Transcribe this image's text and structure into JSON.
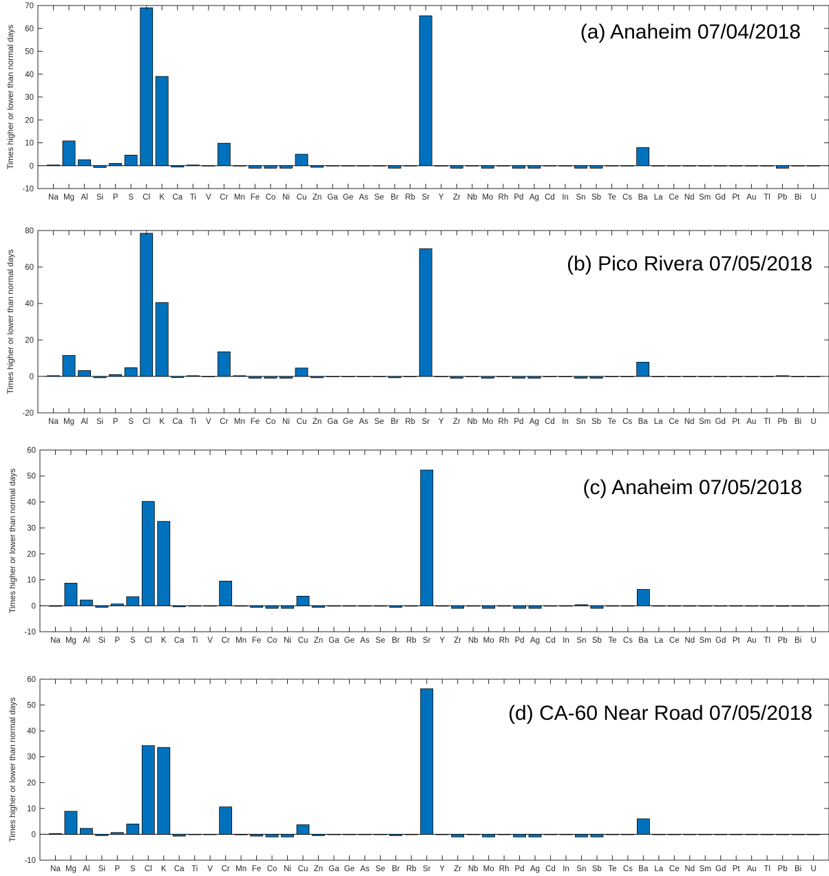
{
  "colors": {
    "bar": "#0072bd",
    "bar_edge": "#000000",
    "axis": "#262626"
  },
  "chart_data": [
    {
      "type": "bar",
      "title": "(a) Anaheim 07/04/2018",
      "ylabel": "Times higher or lower than normal days",
      "ylim": [
        -10,
        70
      ],
      "yticks": [
        -10,
        0,
        10,
        20,
        30,
        40,
        50,
        60,
        70
      ],
      "grid": false,
      "categories": [
        "Na",
        "Mg",
        "Al",
        "Si",
        "P",
        "S",
        "Cl",
        "K",
        "Ca",
        "Ti",
        "V",
        "Cr",
        "Mn",
        "Fe",
        "Co",
        "Ni",
        "Cu",
        "Zn",
        "Ga",
        "Ge",
        "As",
        "Se",
        "Br",
        "Rb",
        "Sr",
        "Y",
        "Zr",
        "Nb",
        "Mo",
        "Rh",
        "Pd",
        "Ag",
        "Cd",
        "In",
        "Sn",
        "Sb",
        "Te",
        "Cs",
        "Ba",
        "La",
        "Ce",
        "Nd",
        "Sm",
        "Gd",
        "Pt",
        "Au",
        "Tl",
        "Pb",
        "Bi",
        "U"
      ],
      "values": [
        0.3,
        10.8,
        2.6,
        -0.8,
        1.0,
        4.6,
        69.0,
        39.0,
        -0.6,
        0.3,
        0,
        9.8,
        0,
        -1.1,
        -1.1,
        -1.1,
        5.0,
        -0.7,
        0,
        0,
        0,
        0,
        -1.1,
        0,
        65.5,
        0,
        -1.1,
        0,
        -1.1,
        0,
        -1.1,
        -1.1,
        0,
        0,
        -1.1,
        -1.1,
        0,
        0,
        7.9,
        0,
        0,
        0,
        0,
        0,
        0,
        0,
        0,
        -1.1,
        0,
        0
      ]
    },
    {
      "type": "bar",
      "title": "(b) Pico Rivera 07/05/2018",
      "ylabel": "Times higher or lower than normal days",
      "ylim": [
        -20,
        80
      ],
      "yticks": [
        -20,
        0,
        20,
        40,
        60,
        80
      ],
      "grid": false,
      "categories": [
        "Na",
        "Mg",
        "Al",
        "Si",
        "P",
        "S",
        "Cl",
        "K",
        "Ca",
        "Ti",
        "V",
        "Cr",
        "Mn",
        "Fe",
        "Co",
        "Ni",
        "Cu",
        "Zn",
        "Ga",
        "Ge",
        "As",
        "Se",
        "Br",
        "Rb",
        "Sr",
        "Y",
        "Zr",
        "Nb",
        "Mo",
        "Rh",
        "Pd",
        "Ag",
        "Cd",
        "In",
        "Sn",
        "Sb",
        "Te",
        "Cs",
        "Ba",
        "La",
        "Ce",
        "Nd",
        "Sm",
        "Gd",
        "Pt",
        "Au",
        "Tl",
        "Pb",
        "Bi",
        "U"
      ],
      "values": [
        0.4,
        11.5,
        3.2,
        -0.7,
        1.0,
        4.8,
        78.5,
        40.5,
        -0.6,
        0.4,
        0,
        13.5,
        0.4,
        -1.0,
        -1.0,
        -1.0,
        4.6,
        -0.7,
        0,
        0,
        0,
        0,
        -0.7,
        0,
        70.0,
        0,
        -1.0,
        0,
        -1.0,
        0,
        -1.0,
        -1.0,
        0,
        0,
        -1.0,
        -1.0,
        0,
        0,
        7.8,
        0,
        0,
        0,
        0,
        0,
        0,
        0,
        0,
        0.4,
        0,
        0
      ]
    },
    {
      "type": "bar",
      "title": "(c) Anaheim 07/05/2018",
      "ylabel": "Times higher or lower than normal days",
      "ylim": [
        -10,
        60
      ],
      "yticks": [
        -10,
        0,
        10,
        20,
        30,
        40,
        50,
        60
      ],
      "grid": false,
      "categories": [
        "Na",
        "Mg",
        "Al",
        "Si",
        "P",
        "S",
        "Cl",
        "K",
        "Ca",
        "Ti",
        "V",
        "Cr",
        "Mn",
        "Fe",
        "Co",
        "Ni",
        "Cu",
        "Zn",
        "Ga",
        "Ge",
        "As",
        "Se",
        "Br",
        "Rb",
        "Sr",
        "Y",
        "Zr",
        "Nb",
        "Mo",
        "Rh",
        "Pd",
        "Ag",
        "Cd",
        "In",
        "Sn",
        "Sb",
        "Te",
        "Cs",
        "Ba",
        "La",
        "Ce",
        "Nd",
        "Sm",
        "Gd",
        "Pt",
        "Au",
        "Tl",
        "Pb",
        "Bi",
        "U"
      ],
      "values": [
        -0.2,
        8.7,
        2.2,
        -0.6,
        0.7,
        3.5,
        40.2,
        32.5,
        -0.4,
        0,
        0,
        9.5,
        0,
        -0.6,
        -1.0,
        -1.0,
        3.7,
        -0.6,
        0,
        0,
        0,
        0,
        -0.6,
        0,
        52.3,
        0,
        -1.0,
        0,
        -1.0,
        0,
        -1.0,
        -1.0,
        0,
        0,
        0.4,
        -1.0,
        0,
        0,
        6.3,
        0,
        0,
        0,
        0,
        0,
        0,
        0,
        0,
        -0.2,
        0,
        0
      ]
    },
    {
      "type": "bar",
      "title": "(d) CA-60 Near Road 07/05/2018",
      "ylabel": "Times higher or lower than normal days",
      "ylim": [
        -10,
        60
      ],
      "yticks": [
        -10,
        0,
        10,
        20,
        30,
        40,
        50,
        60
      ],
      "grid": false,
      "categories": [
        "Na",
        "Mg",
        "Al",
        "Si",
        "P",
        "S",
        "Cl",
        "K",
        "Ca",
        "Ti",
        "V",
        "Cr",
        "Mn",
        "Fe",
        "Co",
        "Ni",
        "Cu",
        "Zn",
        "Ga",
        "Ge",
        "As",
        "Se",
        "Br",
        "Rb",
        "Sr",
        "Y",
        "Zr",
        "Nb",
        "Mo",
        "Rh",
        "Pd",
        "Ag",
        "Cd",
        "In",
        "Sn",
        "Sb",
        "Te",
        "Cs",
        "Ba",
        "La",
        "Ce",
        "Nd",
        "Sm",
        "Gd",
        "Pt",
        "Au",
        "Tl",
        "Pb",
        "Bi",
        "U"
      ],
      "values": [
        0.3,
        8.9,
        2.3,
        -0.5,
        0.7,
        4.0,
        34.3,
        33.6,
        -0.7,
        0,
        0,
        10.6,
        -0.2,
        -0.7,
        -1.0,
        -1.0,
        3.7,
        -0.5,
        0,
        0,
        0,
        0,
        -0.5,
        0,
        56.3,
        0,
        -1.0,
        0,
        -1.0,
        0,
        -1.0,
        -1.0,
        0,
        0,
        -1.0,
        -1.0,
        0,
        0,
        6.0,
        0,
        0,
        0,
        0,
        0,
        0,
        0,
        0,
        -0.1,
        0,
        0
      ]
    }
  ]
}
